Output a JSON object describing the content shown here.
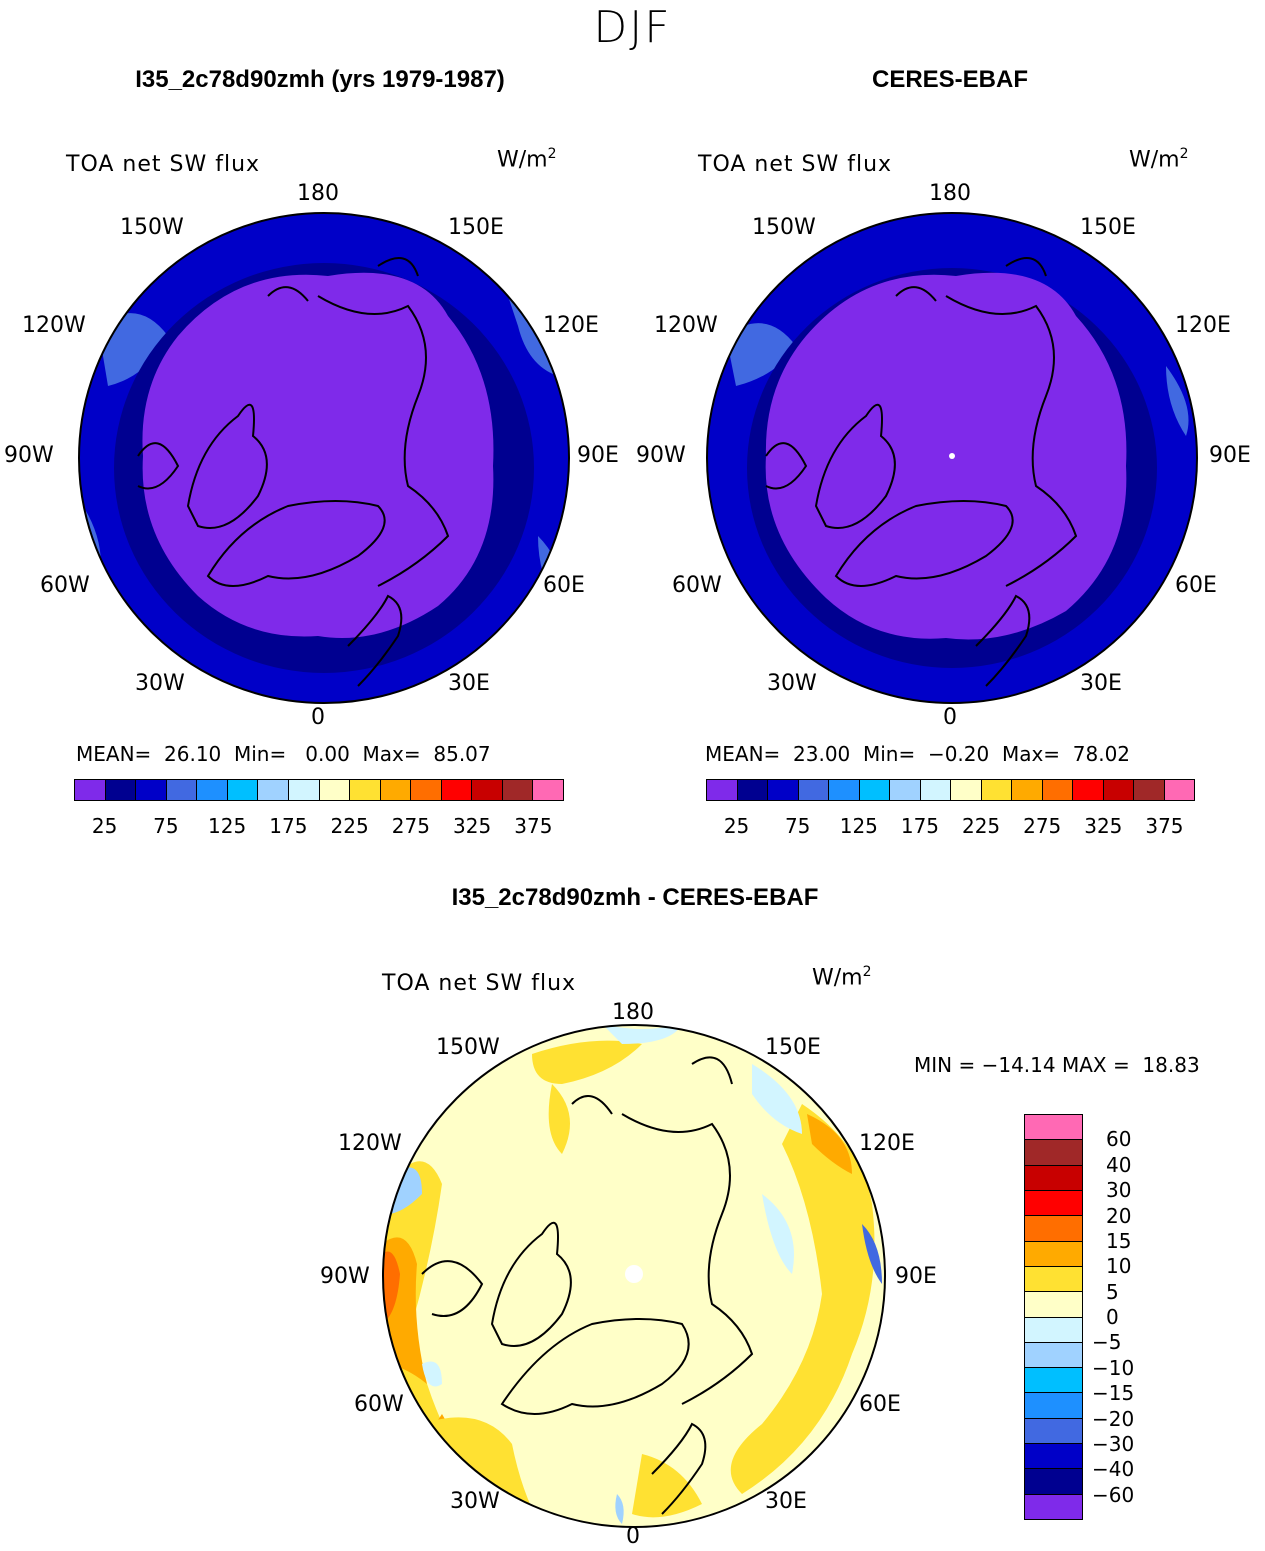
{
  "figure": {
    "title": "DJF"
  },
  "panels": [
    {
      "id": "model",
      "title": "I35_2c78d90zmh (yrs 1979-1987)",
      "variable": "TOA net SW flux",
      "units": "W/m",
      "units_exp": "2",
      "stats": "MEAN=  26.10  Min=   0.00  Max=  85.07"
    },
    {
      "id": "obs",
      "title": "CERES-EBAF",
      "variable": "TOA net SW flux",
      "units": "W/m",
      "units_exp": "2",
      "stats": "MEAN=  23.00  Min=  −0.20  Max=  78.02"
    },
    {
      "id": "diff",
      "title": "I35_2c78d90zmh - CERES-EBAF",
      "variable": "TOA net SW flux",
      "units": "W/m",
      "units_exp": "2",
      "stats": "MIN = −14.14 MAX =  18.83"
    }
  ],
  "longitude_labels": [
    "180",
    "150E",
    "120E",
    "90E",
    "60E",
    "30E",
    "0",
    "30W",
    "60W",
    "90W",
    "120W",
    "150W"
  ],
  "colorbar_main": {
    "colors": [
      "#7f2aea",
      "#000090",
      "#0000c8",
      "#4169e1",
      "#1e90ff",
      "#00bfff",
      "#a0d2ff",
      "#d2f5ff",
      "#ffffc8",
      "#ffe132",
      "#ffaa00",
      "#ff6e00",
      "#ff0000",
      "#c80000",
      "#a02828",
      "#ff69b4"
    ],
    "tick_labels": [
      "25",
      "75",
      "125",
      "175",
      "225",
      "275",
      "325",
      "375"
    ]
  },
  "colorbar_diff": {
    "colors": [
      "#ff69b4",
      "#a02828",
      "#c80000",
      "#ff0000",
      "#ff6e00",
      "#ffaa00",
      "#ffe132",
      "#ffffc8",
      "#d2f5ff",
      "#a0d2ff",
      "#00bfff",
      "#1e90ff",
      "#4169e1",
      "#0000c8",
      "#000090",
      "#7f2aea"
    ],
    "tick_labels": [
      "60",
      "40",
      "30",
      "20",
      "15",
      "10",
      "5",
      "0",
      "−5",
      "−10",
      "−15",
      "−20",
      "−30",
      "−40",
      "−60"
    ]
  }
}
